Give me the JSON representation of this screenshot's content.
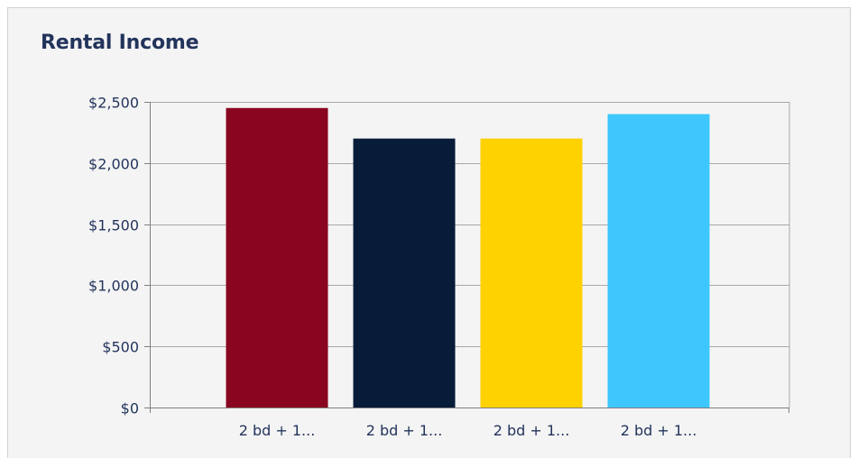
{
  "card": {
    "title": "Rental Income"
  },
  "chart_data": {
    "type": "bar",
    "title": "Rental Income",
    "xlabel": "",
    "ylabel": "",
    "ylim": [
      0,
      2500
    ],
    "yticks": [
      0,
      500,
      1000,
      1500,
      2000,
      2500
    ],
    "ytick_labels": [
      "$0",
      "$500",
      "$1,000",
      "$1,500",
      "$2,000",
      "$2,500"
    ],
    "categories": [
      "2 bd + 1...",
      "2 bd + 1...",
      "2 bd + 1...",
      "2 bd + 1..."
    ],
    "values": [
      2450,
      2200,
      2200,
      2400
    ],
    "colors": [
      "#8a0620",
      "#061c38",
      "#fed100",
      "#3ec7fc"
    ],
    "grid": true,
    "legend": "none"
  },
  "colors": {
    "title": "#23345c",
    "grid": "#a9a9a9",
    "axis": "#7f7f7f",
    "panel": "#f4f4f4"
  }
}
